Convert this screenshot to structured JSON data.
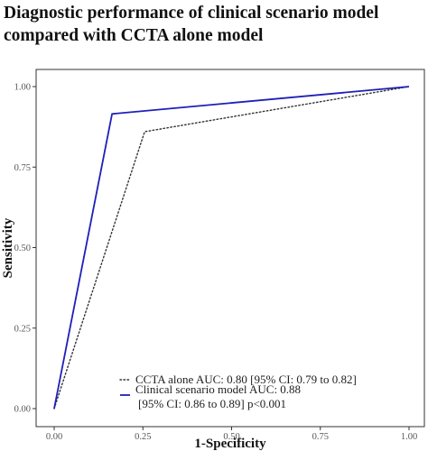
{
  "chart_data": {
    "type": "line",
    "title_lines": [
      "Diagnostic performance of clinical scenario model",
      "compared with CCTA alone model"
    ],
    "xlabel": "1-Specificity",
    "ylabel": "Sensitivity",
    "xlim": [
      0,
      1
    ],
    "ylim": [
      0,
      1
    ],
    "xticks": [
      "0.00",
      "0.25",
      "0.50",
      "0.75",
      "1.00"
    ],
    "yticks": [
      "0.00",
      "0.25",
      "0.50",
      "0.75",
      "1.00"
    ],
    "grid": false,
    "legend_position": "bottom-right",
    "series": [
      {
        "name": "CCTA alone AUC: 0.80 [95% CI: 0.79 to 0.82]",
        "style": "dotted",
        "color": "#333333",
        "points": [
          [
            0,
            0
          ],
          [
            0.255,
            0.86
          ],
          [
            1,
            1
          ]
        ]
      },
      {
        "name_lines": [
          "Clinical scenario model AUC: 0.88",
          "[95% CI: 0.86 to 0.89] p<0.001"
        ],
        "style": "solid",
        "color": "#1f1fb8",
        "points": [
          [
            0,
            0
          ],
          [
            0.163,
            0.915
          ],
          [
            1,
            1
          ]
        ]
      }
    ]
  }
}
